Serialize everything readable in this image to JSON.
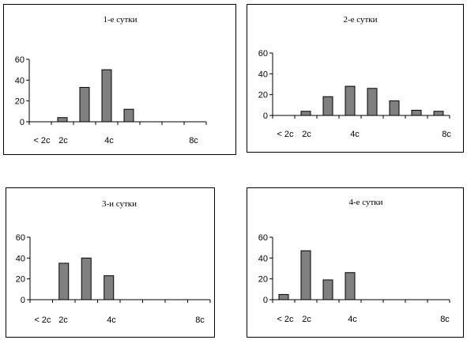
{
  "chart_data": [
    {
      "type": "bar",
      "title": "1-е сутки",
      "ylim": [
        0,
        60
      ],
      "yticks": [
        0,
        20,
        40,
        60
      ],
      "categories": [
        "< 2с",
        "2с",
        "",
        "4с",
        "",
        "",
        "",
        "8с"
      ],
      "values": [
        0,
        4,
        33,
        50,
        12,
        0,
        0,
        0
      ],
      "grid": false,
      "legend": "none"
    },
    {
      "type": "bar",
      "title": "2-е  сутки",
      "ylim": [
        0,
        60
      ],
      "yticks": [
        0,
        20,
        40,
        60
      ],
      "categories": [
        "< 2с",
        "2с",
        "",
        "4с",
        "",
        "",
        "",
        "8с"
      ],
      "values": [
        0,
        4,
        18,
        28,
        26,
        14,
        5,
        4
      ],
      "grid": false,
      "legend": "none"
    },
    {
      "type": "bar",
      "title": "3-и сутки",
      "ylim": [
        0,
        60
      ],
      "yticks": [
        0,
        20,
        40,
        60
      ],
      "categories": [
        "< 2с",
        "2с",
        "",
        "4с",
        "",
        "",
        "",
        "8с"
      ],
      "values": [
        0,
        35,
        40,
        23,
        0,
        0,
        0,
        0
      ],
      "grid": false,
      "legend": "none"
    },
    {
      "type": "bar",
      "title": "4-е сутки",
      "ylim": [
        0,
        60
      ],
      "yticks": [
        0,
        20,
        40,
        60
      ],
      "categories": [
        "< 2с",
        "2с",
        "",
        "4с",
        "",
        "",
        "",
        "8с"
      ],
      "values": [
        5,
        47,
        19,
        26,
        0,
        0,
        0,
        0
      ],
      "grid": false,
      "legend": "none"
    }
  ],
  "colors": {
    "bar_fill": "#808080",
    "bar_stroke": "#000000",
    "axis": "#000000",
    "background": "#ffffff"
  }
}
